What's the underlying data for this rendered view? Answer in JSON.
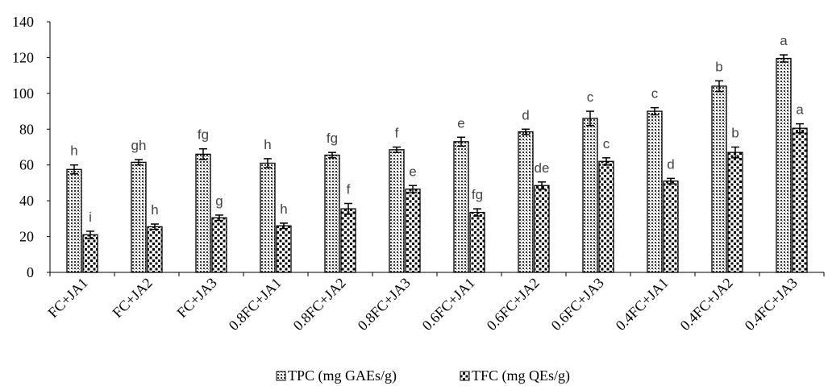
{
  "chart_data": {
    "type": "bar",
    "title": "",
    "xlabel": "",
    "ylabel": "",
    "ylim": [
      0,
      140
    ],
    "yticks": [
      0,
      20,
      40,
      60,
      80,
      100,
      120,
      140
    ],
    "grid": false,
    "legend_position": "bottom",
    "categories": [
      "FC+JA1",
      "FC+JA2",
      "FC+JA3",
      "0.8FC+JA1",
      "0.8FC+JA2",
      "0.8FC+JA3",
      "0.6FC+JA1",
      "0.6FC+JA2",
      "0.6FC+JA3",
      "0.4FC+JA1",
      "0.4FC+JA2",
      "0.4FC+JA3"
    ],
    "series": [
      {
        "name": "TPC (mg GAEs/g)",
        "pattern": "dense-dots",
        "values": [
          57.5,
          61.5,
          66,
          61,
          65.5,
          68.5,
          73,
          78.5,
          86,
          90,
          104,
          119.5
        ],
        "errors": [
          2.5,
          1.5,
          3,
          2.5,
          1.5,
          1.5,
          2.5,
          1.5,
          4,
          2,
          3,
          2
        ],
        "letters": [
          "h",
          "gh",
          "fg",
          "h",
          "fg",
          "f",
          "e",
          "d",
          "c",
          "c",
          "b",
          "a"
        ]
      },
      {
        "name": "TFC (mg QEs/g)",
        "pattern": "sparse-dots",
        "values": [
          21,
          25.5,
          30.5,
          26,
          35.5,
          46.5,
          33.5,
          48.5,
          62,
          51,
          67,
          80.5
        ],
        "errors": [
          2,
          1.5,
          1.5,
          1.5,
          3,
          2,
          2,
          2,
          2,
          1.5,
          3,
          2.5
        ],
        "letters": [
          "i",
          "h",
          "g",
          "h",
          "f",
          "e",
          "fg",
          "de",
          "c",
          "d",
          "b",
          "a"
        ]
      }
    ]
  }
}
